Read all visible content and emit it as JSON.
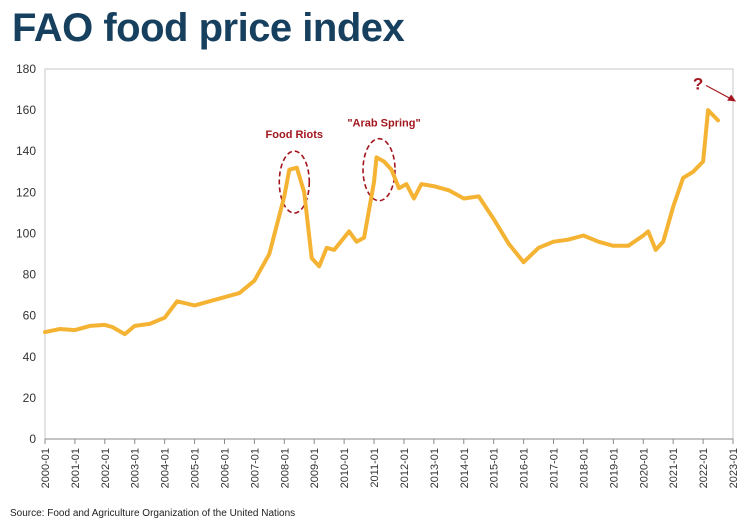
{
  "title": "FAO food price index",
  "source": "Source: Food and Agriculture Organization of the United Nations",
  "colors": {
    "line": "#f5b334",
    "annotation": "#a3161d",
    "title": "#17405f",
    "axis": "#888888"
  },
  "chart_data": {
    "type": "line",
    "title": "FAO food price index",
    "xlabel": "",
    "ylabel": "",
    "ylim": [
      0,
      180
    ],
    "yticks": [
      0,
      20,
      40,
      60,
      80,
      100,
      120,
      140,
      160,
      180
    ],
    "xticks": [
      "2000-01",
      "2001-01",
      "2002-01",
      "2003-01",
      "2004-01",
      "2005-01",
      "2006-01",
      "2007-01",
      "2008-01",
      "2009-01",
      "2010-01",
      "2011-01",
      "2012-01",
      "2013-01",
      "2014-01",
      "2015-01",
      "2016-01",
      "2017-01",
      "2018-01",
      "2019-01",
      "2020-01",
      "2021-01",
      "2022-01",
      "2023-01"
    ],
    "grid": false,
    "series": [
      {
        "name": "",
        "points": [
          [
            "2000-01",
            52
          ],
          [
            "2000-07",
            53.5
          ],
          [
            "2001-01",
            53
          ],
          [
            "2001-07",
            55
          ],
          [
            "2002-01",
            55.5
          ],
          [
            "2002-04",
            54.5
          ],
          [
            "2002-09",
            51
          ],
          [
            "2003-01",
            55
          ],
          [
            "2003-07",
            56
          ],
          [
            "2004-01",
            59
          ],
          [
            "2004-06",
            67
          ],
          [
            "2005-01",
            65
          ],
          [
            "2005-07",
            67
          ],
          [
            "2006-01",
            69
          ],
          [
            "2006-07",
            71
          ],
          [
            "2007-01",
            77
          ],
          [
            "2007-07",
            90
          ],
          [
            "2008-01",
            118
          ],
          [
            "2008-03",
            131
          ],
          [
            "2008-06",
            132
          ],
          [
            "2008-09",
            120
          ],
          [
            "2008-12",
            88
          ],
          [
            "2009-03",
            84
          ],
          [
            "2009-06",
            93
          ],
          [
            "2009-09",
            92
          ],
          [
            "2010-01",
            98
          ],
          [
            "2010-03",
            101
          ],
          [
            "2010-06",
            96
          ],
          [
            "2010-09",
            98
          ],
          [
            "2011-01",
            125
          ],
          [
            "2011-02",
            137
          ],
          [
            "2011-05",
            135
          ],
          [
            "2011-08",
            131
          ],
          [
            "2011-11",
            122
          ],
          [
            "2012-02",
            124
          ],
          [
            "2012-05",
            117
          ],
          [
            "2012-08",
            124
          ],
          [
            "2013-01",
            123
          ],
          [
            "2013-07",
            121
          ],
          [
            "2014-01",
            117
          ],
          [
            "2014-07",
            118
          ],
          [
            "2015-01",
            107
          ],
          [
            "2015-07",
            95
          ],
          [
            "2016-01",
            86
          ],
          [
            "2016-07",
            93
          ],
          [
            "2017-01",
            96
          ],
          [
            "2017-07",
            97
          ],
          [
            "2018-01",
            99
          ],
          [
            "2018-07",
            96
          ],
          [
            "2019-01",
            94
          ],
          [
            "2019-07",
            94
          ],
          [
            "2020-01",
            99
          ],
          [
            "2020-03",
            101
          ],
          [
            "2020-06",
            92
          ],
          [
            "2020-09",
            96
          ],
          [
            "2021-01",
            113
          ],
          [
            "2021-05",
            127
          ],
          [
            "2021-09",
            130
          ],
          [
            "2022-01",
            135
          ],
          [
            "2022-03",
            160
          ],
          [
            "2022-07",
            155
          ]
        ]
      }
    ],
    "annotations": [
      {
        "text": "Food Riots",
        "x": "2008-05",
        "y": 125
      },
      {
        "text": "\"Arab Spring\"",
        "x": "2011-03",
        "y": 131
      },
      {
        "text": "?",
        "x": "2021-11",
        "y": 171
      }
    ]
  }
}
